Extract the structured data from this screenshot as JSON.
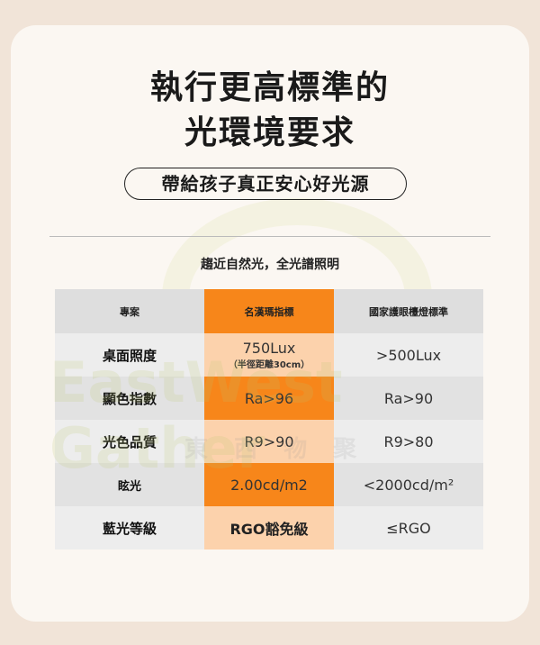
{
  "title_lines": [
    "執行更高標準的",
    "光環境要求"
  ],
  "pill": "帶給孩子真正安心好光源",
  "subtitle": "趨近自然光，全光譜照明",
  "table": {
    "headers": [
      "專案",
      "名漢瑪指標",
      "國家護眼檯燈標準"
    ],
    "rows": [
      {
        "item": "桌面照度",
        "ours": "750Lux",
        "ours_note": "（半徑距離30cm）",
        "standard": ">500Lux"
      },
      {
        "item": "顯色指數",
        "ours": "Ra>96",
        "standard": "Ra>90"
      },
      {
        "item": "光色品質",
        "ours": "R9>90",
        "standard": "R9>80"
      },
      {
        "item": "眩光",
        "ours": "2.00cd/m2",
        "standard": "<2000cd/m²"
      },
      {
        "item": "藍光等級",
        "ours": "RGO豁免級",
        "standard": "≤RGO"
      }
    ]
  },
  "watermark": {
    "en": "EastWest Gather",
    "zh": "東 西 物 聚"
  },
  "colors": {
    "accent": "#f7861a",
    "accent_light": "#fcd2ac",
    "background": "#f1e4d8",
    "card": "#fbf7f2"
  }
}
